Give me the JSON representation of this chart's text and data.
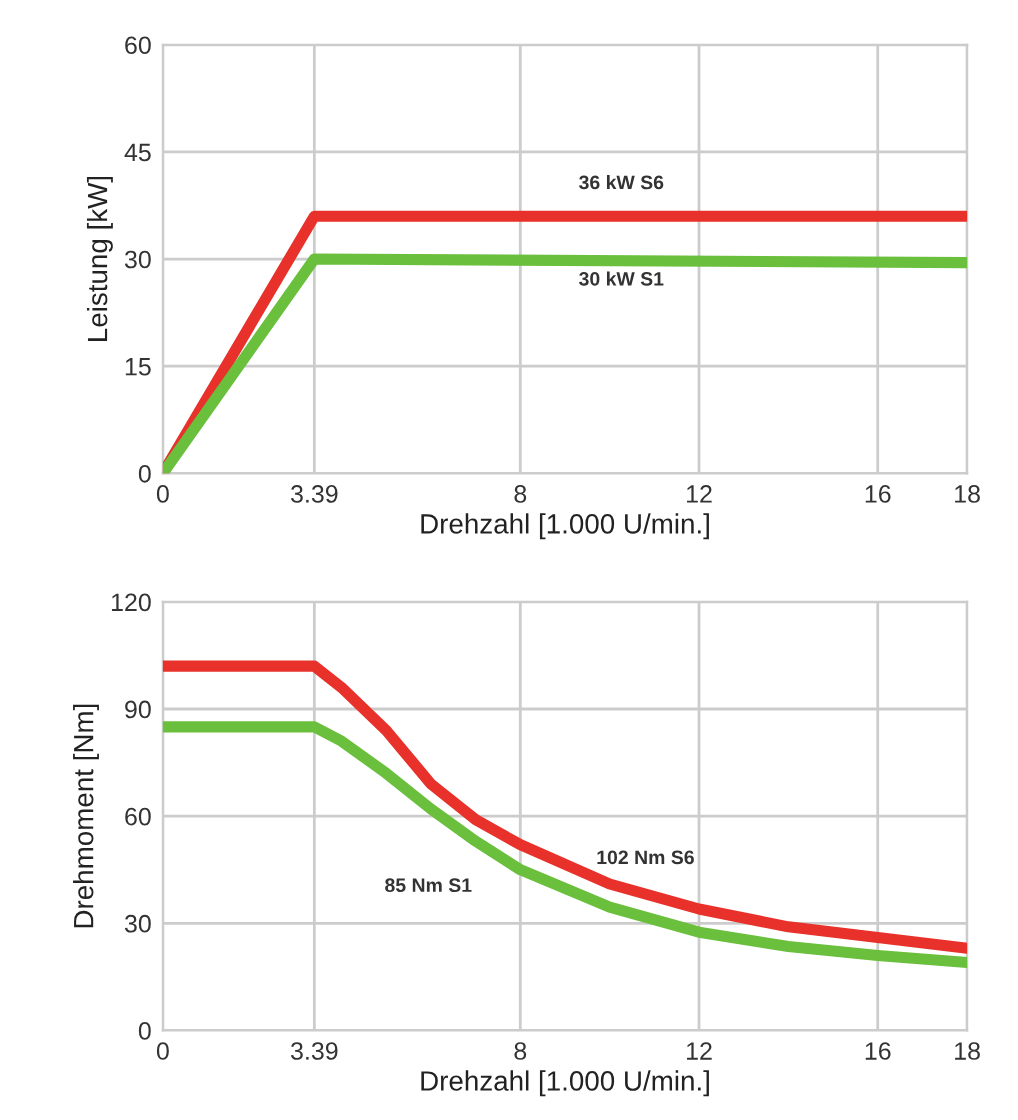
{
  "chart_data": [
    {
      "type": "line",
      "xlabel": "Drehzahl [1.000 U/min.]",
      "ylabel": "Leistung [kW]",
      "xlim": [
        0,
        18
      ],
      "xticks": [
        0,
        3.39,
        8,
        12,
        16,
        18
      ],
      "ylim": [
        0,
        60
      ],
      "yticks": [
        0,
        15,
        30,
        45,
        60
      ],
      "grid": true,
      "marker": "none",
      "line_style": "solid",
      "series": [
        {
          "color": "#e8312a",
          "x": [
            0,
            3.39,
            18
          ],
          "values": [
            0,
            36,
            36
          ]
        },
        {
          "color": "#6abf3c",
          "x": [
            0,
            3.39,
            18
          ],
          "values": [
            0,
            30,
            29.5
          ]
        }
      ],
      "annotations": [
        "36 kW S6",
        "30 kW S1"
      ]
    },
    {
      "type": "line",
      "xlabel": "Drehzahl [1.000 U/min.]",
      "ylabel": "Drehmoment [Nm]",
      "xlim": [
        0,
        18
      ],
      "xticks": [
        0,
        3.39,
        8,
        12,
        16,
        18
      ],
      "ylim": [
        0,
        120
      ],
      "yticks": [
        0,
        30,
        60,
        90,
        120
      ],
      "grid": true,
      "marker": "none",
      "line_style": "solid",
      "series": [
        {
          "color": "#e8312a",
          "x": [
            0,
            3.39,
            4,
            5,
            6,
            7,
            8,
            10,
            12,
            14,
            16,
            18
          ],
          "values": [
            102,
            102,
            96,
            84,
            69,
            59,
            52,
            41,
            34,
            29,
            26,
            23
          ]
        },
        {
          "color": "#6abf3c",
          "x": [
            0,
            3.39,
            4,
            5,
            6,
            7,
            8,
            10,
            12,
            14,
            16,
            18
          ],
          "values": [
            85,
            85,
            81,
            72,
            62,
            53,
            45,
            34.5,
            27.5,
            23.5,
            21,
            19
          ]
        }
      ],
      "annotations": [
        "102 Nm S6",
        "85 Nm S1"
      ]
    }
  ]
}
